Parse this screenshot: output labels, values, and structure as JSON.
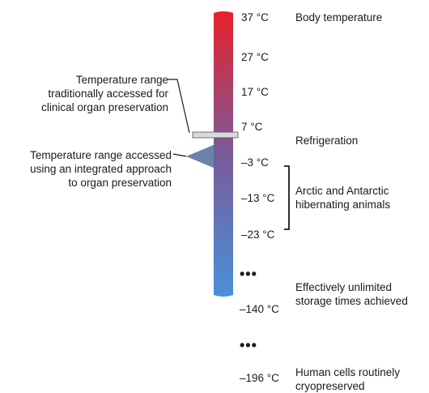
{
  "scale_ticks": [
    "37 °C",
    "27 °C",
    "17 °C",
    "7 °C",
    "–3 °C",
    "–13 °C",
    "–23 °C",
    "–140 °C",
    "–196 °C"
  ],
  "annotations": {
    "body_temperature": "Body temperature",
    "refrigeration": "Refrigeration",
    "hibernating": [
      "Arctic and Antarctic",
      "hibernating animals"
    ],
    "unlimited_storage": [
      "Effectively unlimited",
      "storage times achieved"
    ],
    "cryopreserved": [
      "Human cells routinely",
      "cryopreserved"
    ],
    "clinical_range": [
      "Temperature range",
      "traditionally accessed for",
      "clinical organ preservation"
    ],
    "integrated_range": [
      "Temperature range accessed",
      "using an integrated approach",
      "to organ preservation"
    ]
  },
  "ellipsis": "•••",
  "colors": {
    "bar_top": "#e8202a",
    "bar_mid": "#7a5a9a",
    "bar_bottom": "#4a90d9",
    "band": "#d9d9d9",
    "line": "#1a1a1a"
  }
}
